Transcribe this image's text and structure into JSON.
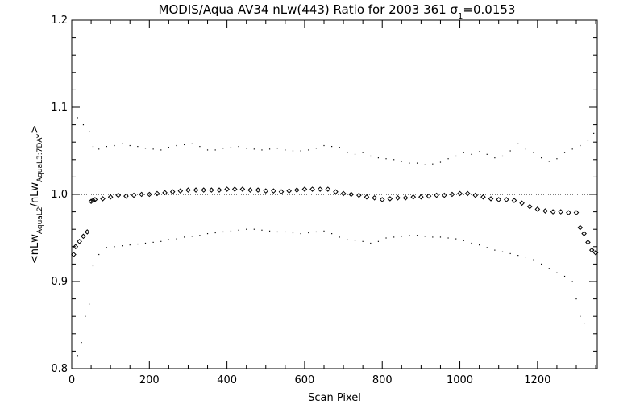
{
  "chart_data": {
    "type": "scatter",
    "title": "MODIS/Aqua AV34 nLw(443) Ratio for 2003 361 σ1=0.0153",
    "title_parts": {
      "prefix": "MODIS/Aqua AV34 nLw(443) Ratio for 2003 361 σ",
      "subscript": "1",
      "suffix": "=0.0153"
    },
    "xlabel": "Scan Pixel",
    "ylabel": "<nLwAquaL2/nLwAquaL3:7DAY>",
    "ylabel_parts": {
      "a": "<nLw",
      "a_sub": "AquaL2",
      "b": "/nLw",
      "b_sub": "AquaL3:7DAY",
      "c": ">"
    },
    "xlim": [
      0,
      1354
    ],
    "ylim": [
      0.8,
      1.2
    ],
    "x_ticks": [
      0,
      200,
      400,
      600,
      800,
      1000,
      1200
    ],
    "y_ticks": [
      "0.8",
      "0.9",
      "1.0",
      "1.1",
      "1.2"
    ],
    "reference_line": 1.0,
    "grid": false,
    "series": [
      {
        "role": "mean ratio",
        "marker": "diamond",
        "x": [
          5,
          10,
          20,
          30,
          40,
          50,
          55,
          60,
          80,
          100,
          120,
          140,
          160,
          180,
          200,
          220,
          240,
          260,
          280,
          300,
          320,
          340,
          360,
          380,
          400,
          420,
          440,
          460,
          480,
          500,
          520,
          540,
          560,
          580,
          600,
          620,
          640,
          660,
          680,
          700,
          720,
          740,
          760,
          780,
          800,
          820,
          840,
          860,
          880,
          900,
          920,
          940,
          960,
          980,
          1000,
          1020,
          1040,
          1060,
          1080,
          1100,
          1120,
          1140,
          1160,
          1180,
          1200,
          1220,
          1240,
          1260,
          1280,
          1300,
          1310,
          1320,
          1330,
          1340,
          1350
        ],
        "y": [
          0.931,
          0.94,
          0.946,
          0.952,
          0.957,
          0.992,
          0.993,
          0.994,
          0.995,
          0.997,
          0.999,
          0.998,
          0.999,
          1.0,
          1.0,
          1.001,
          1.002,
          1.003,
          1.004,
          1.005,
          1.005,
          1.005,
          1.005,
          1.005,
          1.006,
          1.006,
          1.006,
          1.005,
          1.005,
          1.004,
          1.004,
          1.003,
          1.004,
          1.005,
          1.006,
          1.006,
          1.006,
          1.006,
          1.003,
          1.001,
          1.0,
          0.999,
          0.997,
          0.996,
          0.994,
          0.995,
          0.996,
          0.996,
          0.997,
          0.997,
          0.998,
          0.999,
          0.999,
          1.0,
          1.001,
          1.001,
          0.999,
          0.997,
          0.995,
          0.994,
          0.994,
          0.993,
          0.99,
          0.986,
          0.983,
          0.981,
          0.98,
          0.98,
          0.979,
          0.979,
          0.962,
          0.955,
          0.945,
          0.936,
          0.933
        ]
      },
      {
        "role": "upper bound",
        "marker": "dot",
        "x": [
          15,
          30,
          45,
          55,
          70,
          90,
          110,
          130,
          150,
          170,
          190,
          210,
          230,
          250,
          270,
          290,
          310,
          330,
          350,
          370,
          390,
          410,
          430,
          450,
          470,
          490,
          510,
          530,
          550,
          570,
          590,
          610,
          630,
          650,
          670,
          690,
          710,
          730,
          750,
          770,
          790,
          810,
          830,
          850,
          870,
          890,
          910,
          930,
          950,
          970,
          990,
          1010,
          1030,
          1050,
          1070,
          1090,
          1110,
          1130,
          1150,
          1170,
          1190,
          1210,
          1230,
          1250,
          1270,
          1290,
          1310,
          1330,
          1345
        ],
        "y": [
          1.088,
          1.08,
          1.072,
          1.055,
          1.052,
          1.055,
          1.056,
          1.058,
          1.056,
          1.055,
          1.053,
          1.052,
          1.051,
          1.054,
          1.056,
          1.057,
          1.058,
          1.055,
          1.051,
          1.051,
          1.053,
          1.054,
          1.055,
          1.053,
          1.052,
          1.051,
          1.052,
          1.053,
          1.051,
          1.05,
          1.05,
          1.051,
          1.053,
          1.056,
          1.055,
          1.054,
          1.048,
          1.046,
          1.048,
          1.044,
          1.042,
          1.041,
          1.04,
          1.038,
          1.036,
          1.036,
          1.034,
          1.035,
          1.037,
          1.041,
          1.044,
          1.048,
          1.046,
          1.049,
          1.046,
          1.042,
          1.044,
          1.05,
          1.058,
          1.052,
          1.048,
          1.042,
          1.038,
          1.041,
          1.048,
          1.052,
          1.056,
          1.062,
          1.07
        ]
      },
      {
        "role": "lower bound",
        "marker": "dot",
        "x": [
          15,
          25,
          35,
          45,
          55,
          70,
          90,
          110,
          130,
          150,
          170,
          190,
          210,
          230,
          250,
          270,
          290,
          310,
          330,
          350,
          370,
          390,
          410,
          430,
          450,
          470,
          490,
          510,
          530,
          550,
          570,
          590,
          610,
          630,
          650,
          670,
          690,
          710,
          730,
          750,
          770,
          790,
          810,
          830,
          850,
          870,
          890,
          910,
          930,
          950,
          970,
          990,
          1010,
          1030,
          1050,
          1070,
          1090,
          1110,
          1130,
          1150,
          1170,
          1190,
          1210,
          1230,
          1250,
          1270,
          1290,
          1300,
          1310,
          1320,
          1335
        ],
        "y": [
          0.815,
          0.83,
          0.86,
          0.874,
          0.918,
          0.931,
          0.939,
          0.94,
          0.941,
          0.942,
          0.943,
          0.944,
          0.945,
          0.946,
          0.948,
          0.949,
          0.951,
          0.952,
          0.953,
          0.955,
          0.956,
          0.957,
          0.958,
          0.959,
          0.96,
          0.96,
          0.959,
          0.958,
          0.957,
          0.957,
          0.956,
          0.955,
          0.956,
          0.957,
          0.958,
          0.955,
          0.951,
          0.948,
          0.947,
          0.946,
          0.944,
          0.946,
          0.95,
          0.951,
          0.952,
          0.953,
          0.953,
          0.952,
          0.951,
          0.951,
          0.95,
          0.949,
          0.947,
          0.944,
          0.942,
          0.939,
          0.936,
          0.934,
          0.932,
          0.93,
          0.928,
          0.925,
          0.92,
          0.915,
          0.91,
          0.906,
          0.9,
          0.88,
          0.86,
          0.852,
          0.9
        ]
      }
    ]
  }
}
